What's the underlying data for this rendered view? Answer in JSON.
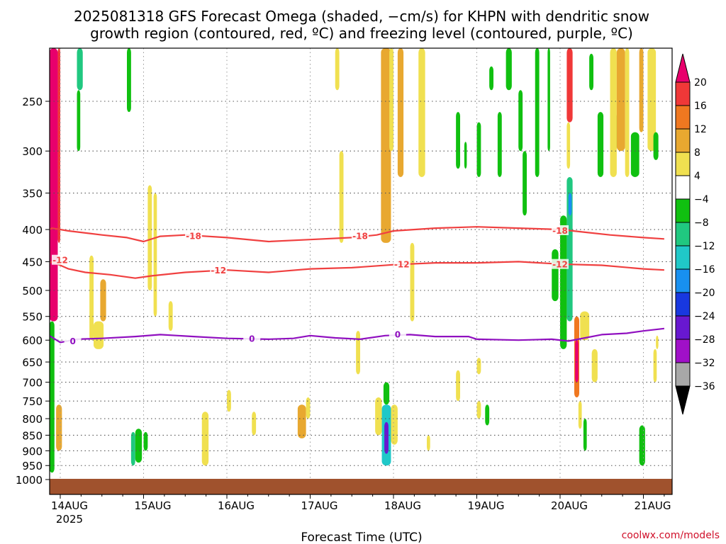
{
  "title_line1": "2025081318 GFS Forecast Omega (shaded, −cm/s) for KHPN with dendritic snow",
  "title_line2": "growth region (contoured, red, ºC) and freezing level (contoured, purple, ºC)",
  "credit": "coolwx.com/models",
  "colors": {
    "ground": "#a0522d",
    "contour_red": "#f04040",
    "contour_purple": "#9010c0",
    "grid": "#555555"
  },
  "chart_data": {
    "type": "heatmap",
    "xlabel": "Forecast Time (UTC)",
    "x_ticks": [
      "14AUG",
      "15AUG",
      "16AUG",
      "17AUG",
      "18AUG",
      "19AUG",
      "20AUG",
      "21AUG"
    ],
    "x_tick_sublabel": "2025",
    "x_range_days": [
      13.75,
      21.25
    ],
    "y_ticks": [
      250,
      300,
      350,
      400,
      450,
      500,
      550,
      600,
      650,
      700,
      750,
      800,
      850,
      900,
      950,
      1000
    ],
    "y_range_hpa": [
      200,
      1000
    ],
    "y_scale": "log-pressure",
    "grid": true,
    "colorbar": {
      "labels": [
        "20",
        "16",
        "12",
        "8",
        "4",
        "−4",
        "−8",
        "−12",
        "−16",
        "−20",
        "−24",
        "−28",
        "−32",
        "−36"
      ],
      "bins": [
        {
          "min": 20,
          "max": null,
          "color": "#e8006c"
        },
        {
          "min": 16,
          "max": 20,
          "color": "#f03838"
        },
        {
          "min": 12,
          "max": 16,
          "color": "#f07820"
        },
        {
          "min": 8,
          "max": 12,
          "color": "#e8a830"
        },
        {
          "min": 4,
          "max": 8,
          "color": "#f0e050"
        },
        {
          "min": -4,
          "max": 4,
          "color": "#ffffff"
        },
        {
          "min": -8,
          "max": -4,
          "color": "#10c010"
        },
        {
          "min": -12,
          "max": -8,
          "color": "#20c880"
        },
        {
          "min": -16,
          "max": -12,
          "color": "#20c8c8"
        },
        {
          "min": -20,
          "max": -16,
          "color": "#1890f0"
        },
        {
          "min": -24,
          "max": -20,
          "color": "#1838e0"
        },
        {
          "min": -28,
          "max": -24,
          "color": "#6818d0"
        },
        {
          "min": -32,
          "max": -28,
          "color": "#a010c8"
        },
        {
          "min": -36,
          "max": -32,
          "color": "#a8a8a8"
        },
        {
          "min": null,
          "max": -36,
          "color": "#000000"
        }
      ]
    },
    "contours": [
      {
        "value": -18,
        "label": "-18",
        "color": "#f04040",
        "points": [
          [
            13.75,
            408
          ],
          [
            13.9,
            398
          ],
          [
            14.1,
            402
          ],
          [
            14.5,
            408
          ],
          [
            14.8,
            412
          ],
          [
            15.0,
            418
          ],
          [
            15.2,
            410
          ],
          [
            15.5,
            408
          ],
          [
            16.0,
            412
          ],
          [
            16.5,
            418
          ],
          [
            17.0,
            415
          ],
          [
            17.5,
            412
          ],
          [
            17.8,
            408
          ],
          [
            18.0,
            402
          ],
          [
            18.5,
            398
          ],
          [
            19.0,
            396
          ],
          [
            19.5,
            398
          ],
          [
            20.0,
            400
          ],
          [
            20.3,
            404
          ],
          [
            20.6,
            408
          ],
          [
            21.0,
            412
          ],
          [
            21.25,
            414
          ]
        ],
        "label_positions": [
          [
            15.6,
            410
          ],
          [
            17.6,
            410
          ],
          [
            20.0,
            402
          ]
        ]
      },
      {
        "value": -12,
        "label": "-12",
        "color": "#f04040",
        "points": [
          [
            13.75,
            462
          ],
          [
            13.9,
            450
          ],
          [
            14.1,
            462
          ],
          [
            14.3,
            468
          ],
          [
            14.6,
            472
          ],
          [
            14.9,
            478
          ],
          [
            15.1,
            474
          ],
          [
            15.5,
            468
          ],
          [
            16.0,
            464
          ],
          [
            16.5,
            468
          ],
          [
            17.0,
            462
          ],
          [
            17.5,
            460
          ],
          [
            18.0,
            455
          ],
          [
            18.5,
            452
          ],
          [
            19.0,
            452
          ],
          [
            19.5,
            450
          ],
          [
            20.0,
            454
          ],
          [
            20.5,
            456
          ],
          [
            21.0,
            462
          ],
          [
            21.25,
            464
          ]
        ],
        "label_positions": [
          [
            14.0,
            448
          ],
          [
            15.9,
            465
          ],
          [
            18.1,
            455
          ],
          [
            20.0,
            455
          ]
        ]
      },
      {
        "value": 0,
        "label": "0",
        "color": "#9010c0",
        "points": [
          [
            13.75,
            598
          ],
          [
            13.85,
            588
          ],
          [
            14.0,
            605
          ],
          [
            14.2,
            598
          ],
          [
            14.5,
            596
          ],
          [
            14.9,
            592
          ],
          [
            15.2,
            588
          ],
          [
            15.6,
            592
          ],
          [
            16.0,
            596
          ],
          [
            16.5,
            598
          ],
          [
            16.8,
            596
          ],
          [
            17.0,
            590
          ],
          [
            17.3,
            595
          ],
          [
            17.6,
            598
          ],
          [
            17.9,
            590
          ],
          [
            18.2,
            588
          ],
          [
            18.5,
            592
          ],
          [
            18.9,
            592
          ],
          [
            19.0,
            598
          ],
          [
            19.5,
            600
          ],
          [
            19.9,
            598
          ],
          [
            20.1,
            602
          ],
          [
            20.3,
            595
          ],
          [
            20.5,
            588
          ],
          [
            20.8,
            585
          ],
          [
            21.0,
            580
          ],
          [
            21.25,
            575
          ]
        ],
        "label_positions": [
          [
            14.15,
            603
          ],
          [
            16.3,
            597
          ],
          [
            18.05,
            588
          ]
        ]
      }
    ],
    "shaded_regions": [
      {
        "x0": 13.87,
        "x1": 13.97,
        "p0": 200,
        "p1": 560,
        "bin": 20
      },
      {
        "x0": 13.97,
        "x1": 14.0,
        "p0": 200,
        "p1": 420,
        "bin": 16
      },
      {
        "x0": 13.8,
        "x1": 13.87,
        "p0": 420,
        "p1": 975,
        "bin": -40
      },
      {
        "x0": 13.75,
        "x1": 13.8,
        "p0": 780,
        "p1": 975,
        "bin": -28
      },
      {
        "x0": 13.75,
        "x1": 13.8,
        "p0": 540,
        "p1": 780,
        "bin": -16
      },
      {
        "x0": 13.87,
        "x1": 13.93,
        "p0": 560,
        "p1": 975,
        "bin": -8
      },
      {
        "x0": 13.95,
        "x1": 14.02,
        "p0": 760,
        "p1": 900,
        "bin": 8
      },
      {
        "x0": 14.2,
        "x1": 14.27,
        "p0": 200,
        "p1": 240,
        "bin": -12
      },
      {
        "x0": 14.2,
        "x1": 14.24,
        "p0": 240,
        "p1": 300,
        "bin": -8
      },
      {
        "x0": 14.35,
        "x1": 14.4,
        "p0": 440,
        "p1": 600,
        "bin": 4
      },
      {
        "x0": 14.48,
        "x1": 14.55,
        "p0": 480,
        "p1": 560,
        "bin": 8
      },
      {
        "x0": 14.4,
        "x1": 14.52,
        "p0": 560,
        "p1": 620,
        "bin": 4
      },
      {
        "x0": 14.85,
        "x1": 14.9,
        "p0": 840,
        "p1": 950,
        "bin": -12
      },
      {
        "x0": 14.9,
        "x1": 14.98,
        "p0": 830,
        "p1": 940,
        "bin": -8
      },
      {
        "x0": 15.0,
        "x1": 15.05,
        "p0": 840,
        "p1": 900,
        "bin": -8
      },
      {
        "x0": 14.8,
        "x1": 14.85,
        "p0": 200,
        "p1": 260,
        "bin": -8
      },
      {
        "x0": 15.05,
        "x1": 15.1,
        "p0": 340,
        "p1": 500,
        "bin": 4
      },
      {
        "x0": 15.12,
        "x1": 15.16,
        "p0": 350,
        "p1": 550,
        "bin": 4
      },
      {
        "x0": 15.7,
        "x1": 15.78,
        "p0": 780,
        "p1": 950,
        "bin": 4
      },
      {
        "x0": 16.85,
        "x1": 16.95,
        "p0": 760,
        "p1": 860,
        "bin": 8
      },
      {
        "x0": 16.95,
        "x1": 17.0,
        "p0": 740,
        "p1": 800,
        "bin": 4
      },
      {
        "x0": 16.3,
        "x1": 16.35,
        "p0": 780,
        "p1": 850,
        "bin": 4
      },
      {
        "x0": 16.0,
        "x1": 16.05,
        "p0": 720,
        "p1": 780,
        "bin": 4
      },
      {
        "x0": 17.3,
        "x1": 17.35,
        "p0": 200,
        "p1": 240,
        "bin": 4
      },
      {
        "x0": 17.35,
        "x1": 17.4,
        "p0": 300,
        "p1": 420,
        "bin": 4
      },
      {
        "x0": 17.55,
        "x1": 17.6,
        "p0": 580,
        "p1": 680,
        "bin": 4
      },
      {
        "x0": 17.85,
        "x1": 17.97,
        "p0": 200,
        "p1": 420,
        "bin": 8
      },
      {
        "x0": 17.95,
        "x1": 18.0,
        "p0": 200,
        "p1": 300,
        "bin": 4
      },
      {
        "x0": 18.05,
        "x1": 18.12,
        "p0": 200,
        "p1": 330,
        "bin": 8
      },
      {
        "x0": 17.88,
        "x1": 17.95,
        "p0": 700,
        "p1": 760,
        "bin": -8
      },
      {
        "x0": 17.86,
        "x1": 17.97,
        "p0": 760,
        "p1": 950,
        "bin": -16
      },
      {
        "x0": 17.89,
        "x1": 17.94,
        "p0": 810,
        "p1": 910,
        "bin": -28
      },
      {
        "x0": 17.78,
        "x1": 17.86,
        "p0": 740,
        "p1": 850,
        "bin": 4
      },
      {
        "x0": 17.97,
        "x1": 18.05,
        "p0": 760,
        "p1": 880,
        "bin": 4
      },
      {
        "x0": 18.2,
        "x1": 18.25,
        "p0": 420,
        "p1": 560,
        "bin": 4
      },
      {
        "x0": 18.3,
        "x1": 18.38,
        "p0": 200,
        "p1": 330,
        "bin": 4
      },
      {
        "x0": 18.4,
        "x1": 18.44,
        "p0": 850,
        "p1": 900,
        "bin": 4
      },
      {
        "x0": 18.75,
        "x1": 18.8,
        "p0": 260,
        "p1": 320,
        "bin": -8
      },
      {
        "x0": 18.85,
        "x1": 18.88,
        "p0": 290,
        "p1": 320,
        "bin": -8
      },
      {
        "x0": 19.0,
        "x1": 19.05,
        "p0": 270,
        "p1": 330,
        "bin": -8
      },
      {
        "x0": 19.15,
        "x1": 19.2,
        "p0": 220,
        "p1": 240,
        "bin": -8
      },
      {
        "x0": 19.25,
        "x1": 19.3,
        "p0": 260,
        "p1": 330,
        "bin": -8
      },
      {
        "x0": 19.35,
        "x1": 19.42,
        "p0": 200,
        "p1": 240,
        "bin": -8
      },
      {
        "x0": 19.5,
        "x1": 19.55,
        "p0": 240,
        "p1": 300,
        "bin": -8
      },
      {
        "x0": 19.55,
        "x1": 19.6,
        "p0": 300,
        "p1": 380,
        "bin": -8
      },
      {
        "x0": 19.7,
        "x1": 19.75,
        "p0": 200,
        "p1": 330,
        "bin": -8
      },
      {
        "x0": 19.85,
        "x1": 19.88,
        "p0": 200,
        "p1": 300,
        "bin": -8
      },
      {
        "x0": 18.75,
        "x1": 18.8,
        "p0": 670,
        "p1": 750,
        "bin": 4
      },
      {
        "x0": 19.0,
        "x1": 19.05,
        "p0": 640,
        "p1": 680,
        "bin": 4
      },
      {
        "x0": 19.1,
        "x1": 19.15,
        "p0": 760,
        "p1": 820,
        "bin": -8
      },
      {
        "x0": 19.0,
        "x1": 19.05,
        "p0": 750,
        "p1": 800,
        "bin": 4
      },
      {
        "x0": 20.08,
        "x1": 20.15,
        "p0": 200,
        "p1": 270,
        "bin": 16
      },
      {
        "x0": 20.08,
        "x1": 20.12,
        "p0": 270,
        "p1": 320,
        "bin": 4
      },
      {
        "x0": 20.08,
        "x1": 20.15,
        "p0": 330,
        "p1": 560,
        "bin": -12
      },
      {
        "x0": 20.1,
        "x1": 20.14,
        "p0": 350,
        "p1": 380,
        "bin": -20
      },
      {
        "x0": 20.0,
        "x1": 20.08,
        "p0": 380,
        "p1": 620,
        "bin": -8
      },
      {
        "x0": 19.9,
        "x1": 19.98,
        "p0": 430,
        "p1": 520,
        "bin": -8
      },
      {
        "x0": 20.17,
        "x1": 20.23,
        "p0": 550,
        "p1": 740,
        "bin": 12
      },
      {
        "x0": 20.18,
        "x1": 20.22,
        "p0": 600,
        "p1": 700,
        "bin": 20
      },
      {
        "x0": 20.24,
        "x1": 20.35,
        "p0": 540,
        "p1": 600,
        "bin": 4
      },
      {
        "x0": 20.22,
        "x1": 20.26,
        "p0": 750,
        "p1": 830,
        "bin": 4
      },
      {
        "x0": 20.28,
        "x1": 20.32,
        "p0": 800,
        "p1": 900,
        "bin": -8
      },
      {
        "x0": 20.45,
        "x1": 20.52,
        "p0": 260,
        "p1": 330,
        "bin": -8
      },
      {
        "x0": 20.35,
        "x1": 20.4,
        "p0": 210,
        "p1": 240,
        "bin": -8
      },
      {
        "x0": 20.6,
        "x1": 20.68,
        "p0": 260,
        "p1": 300,
        "bin": -8
      },
      {
        "x0": 20.6,
        "x1": 20.68,
        "p0": 200,
        "p1": 330,
        "bin": 4
      },
      {
        "x0": 20.68,
        "x1": 20.78,
        "p0": 200,
        "p1": 300,
        "bin": 8
      },
      {
        "x0": 20.78,
        "x1": 20.83,
        "p0": 200,
        "p1": 330,
        "bin": 4
      },
      {
        "x0": 20.85,
        "x1": 20.95,
        "p0": 280,
        "p1": 330,
        "bin": -8
      },
      {
        "x0": 20.95,
        "x1": 21.0,
        "p0": 200,
        "p1": 280,
        "bin": 8
      },
      {
        "x0": 21.05,
        "x1": 21.15,
        "p0": 200,
        "p1": 300,
        "bin": 4
      },
      {
        "x0": 21.12,
        "x1": 21.18,
        "p0": 280,
        "p1": 310,
        "bin": -8
      },
      {
        "x0": 20.95,
        "x1": 21.02,
        "p0": 820,
        "p1": 950,
        "bin": -8
      },
      {
        "x0": 21.12,
        "x1": 21.16,
        "p0": 620,
        "p1": 700,
        "bin": 4
      },
      {
        "x0": 21.15,
        "x1": 21.18,
        "p0": 590,
        "p1": 620,
        "bin": 4
      },
      {
        "x0": 20.38,
        "x1": 20.45,
        "p0": 620,
        "p1": 700,
        "bin": 4
      },
      {
        "x0": 15.3,
        "x1": 15.35,
        "p0": 520,
        "p1": 580,
        "bin": 4
      }
    ]
  }
}
